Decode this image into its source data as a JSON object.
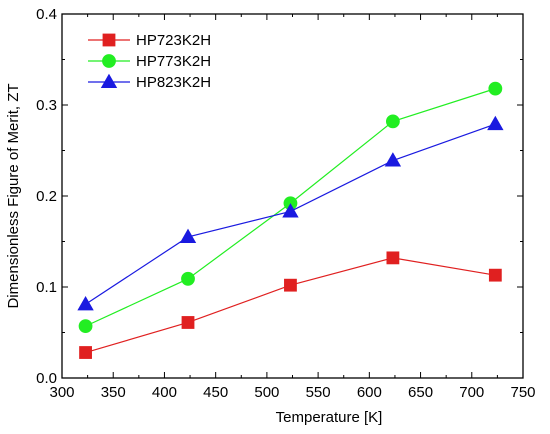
{
  "chart_data": {
    "type": "line",
    "xlabel": "Temperature [K]",
    "ylabel": "Dimensionless Figure of Merit, ZT",
    "xlim": [
      300,
      750
    ],
    "ylim": [
      0.0,
      0.4
    ],
    "xticks": [
      300,
      350,
      400,
      450,
      500,
      550,
      600,
      650,
      700,
      750
    ],
    "yticks": [
      0.0,
      0.1,
      0.2,
      0.3,
      0.4
    ],
    "ytick_labels": [
      "0.0",
      "0.1",
      "0.2",
      "0.3",
      "0.4"
    ],
    "grid": false,
    "legend_position": "top-left",
    "series": [
      {
        "name": "HP723K2H",
        "color": "#e02020",
        "marker": "square",
        "x": [
          323,
          423,
          523,
          623,
          723
        ],
        "y": [
          0.028,
          0.061,
          0.102,
          0.132,
          0.113
        ]
      },
      {
        "name": "HP773K2H",
        "color": "#22ee22",
        "marker": "circle",
        "x": [
          323,
          423,
          523,
          623,
          723
        ],
        "y": [
          0.057,
          0.109,
          0.192,
          0.282,
          0.318
        ]
      },
      {
        "name": "HP823K2H",
        "color": "#1a1ae0",
        "marker": "triangle",
        "x": [
          323,
          423,
          523,
          623,
          723
        ],
        "y": [
          0.081,
          0.155,
          0.183,
          0.239,
          0.279
        ]
      }
    ]
  }
}
